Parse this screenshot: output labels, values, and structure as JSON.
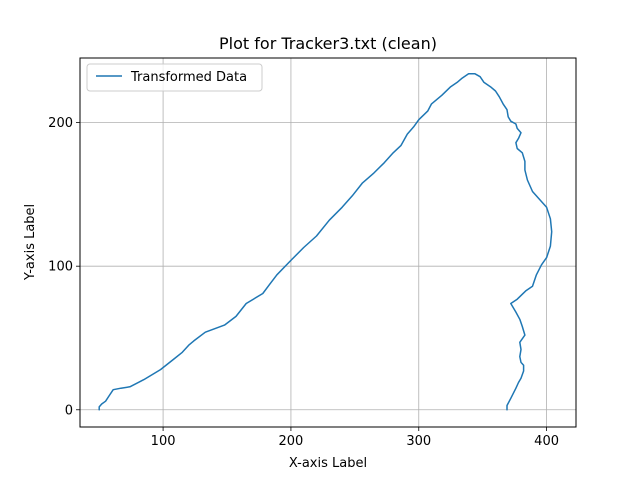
{
  "chart_data": {
    "type": "line",
    "title": "Plot for Tracker3.txt (clean)",
    "xlabel": "X-axis Label",
    "ylabel": "Y-axis Label",
    "xlim": [
      35,
      423
    ],
    "ylim": [
      -12,
      245
    ],
    "xticks": [
      100,
      200,
      300,
      400
    ],
    "yticks": [
      0,
      100,
      200
    ],
    "grid": true,
    "legend_position": "upper-left",
    "series": [
      {
        "name": "Transformed Data",
        "color": "#1f77b4",
        "points": [
          [
            50,
            0
          ],
          [
            50,
            2
          ],
          [
            52,
            4
          ],
          [
            55,
            6
          ],
          [
            58,
            10
          ],
          [
            61,
            14
          ],
          [
            67,
            15
          ],
          [
            74,
            16
          ],
          [
            85,
            21
          ],
          [
            98,
            28
          ],
          [
            108,
            35
          ],
          [
            115,
            40
          ],
          [
            120,
            45
          ],
          [
            124,
            48
          ],
          [
            133,
            54
          ],
          [
            148,
            59
          ],
          [
            157,
            65
          ],
          [
            165,
            74
          ],
          [
            178,
            81
          ],
          [
            183,
            87
          ],
          [
            189,
            94
          ],
          [
            200,
            104
          ],
          [
            210,
            113
          ],
          [
            220,
            121
          ],
          [
            230,
            132
          ],
          [
            240,
            141
          ],
          [
            248,
            149
          ],
          [
            256,
            158
          ],
          [
            265,
            165
          ],
          [
            273,
            172
          ],
          [
            280,
            179
          ],
          [
            286,
            184
          ],
          [
            291,
            192
          ],
          [
            296,
            197
          ],
          [
            300,
            202
          ],
          [
            307,
            208
          ],
          [
            310,
            213
          ],
          [
            318,
            219
          ],
          [
            325,
            225
          ],
          [
            330,
            228
          ],
          [
            334,
            231
          ],
          [
            339,
            234
          ],
          [
            344,
            234
          ],
          [
            348,
            232
          ],
          [
            351,
            228
          ],
          [
            356,
            225
          ],
          [
            360,
            222
          ],
          [
            363,
            218
          ],
          [
            366,
            213
          ],
          [
            369,
            209
          ],
          [
            370,
            204
          ],
          [
            372,
            201
          ],
          [
            376,
            199
          ],
          [
            377,
            196
          ],
          [
            380,
            193
          ],
          [
            378,
            189
          ],
          [
            376,
            186
          ],
          [
            377,
            182
          ],
          [
            381,
            179
          ],
          [
            383,
            173
          ],
          [
            383,
            167
          ],
          [
            385,
            160
          ],
          [
            389,
            152
          ],
          [
            395,
            146
          ],
          [
            400,
            141
          ],
          [
            403,
            133
          ],
          [
            404,
            124
          ],
          [
            403,
            114
          ],
          [
            400,
            106
          ],
          [
            396,
            101
          ],
          [
            392,
            94
          ],
          [
            389,
            86
          ],
          [
            384,
            83
          ],
          [
            377,
            77
          ],
          [
            372,
            74
          ],
          [
            376,
            68
          ],
          [
            379,
            63
          ],
          [
            381,
            58
          ],
          [
            383,
            52
          ],
          [
            379,
            47
          ],
          [
            380,
            42
          ],
          [
            379,
            37
          ],
          [
            380,
            33
          ],
          [
            382,
            31
          ],
          [
            382,
            27
          ],
          [
            380,
            22
          ],
          [
            378,
            19
          ],
          [
            376,
            15
          ],
          [
            372,
            8
          ],
          [
            369,
            3
          ],
          [
            369,
            0
          ]
        ]
      }
    ]
  }
}
